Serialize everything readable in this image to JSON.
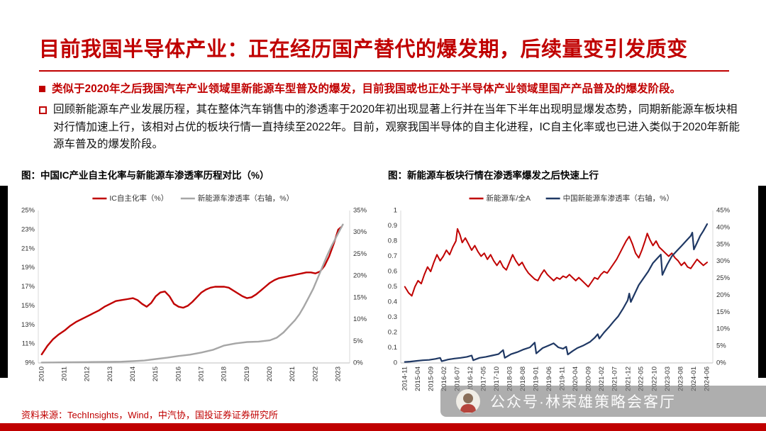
{
  "page": {
    "title": "目前我国半导体产业：正在经历国产替代的爆发期，后续量变引发质变",
    "bullets": [
      {
        "style": "filled",
        "text": "类似于2020年之后我国汽车产业领域里新能源车型普及的爆发，目前我国或也正处于半导体产业领域里国产产品普及的爆发阶段。"
      },
      {
        "style": "hollow",
        "text": "回顾新能源车产业发展历程，其在整体汽车销售中的渗透率于2020年初出现显著上行并在当年下半年出现明显爆发态势，同期新能源车板块相对行情加速上行，该相对占优的板块行情一直持续至2022年。目前，观察我国半导体的自主化进程，IC自主化率或也已进入类似于2020年新能源车普及的爆发阶段。"
      }
    ],
    "source": "资料来源：TechInsights，Wind，中汽协，国投证券证券研究所",
    "watermark": "公众号·林荣雄策略会客厅",
    "colors": {
      "accent": "#c00000",
      "bottom_bar": "#c00000",
      "side_bars": "#000000"
    }
  },
  "chart_data": [
    {
      "type": "line",
      "title": "图：中国IC产业自主化率与新能源车渗透率历程对比（%）",
      "legend_position": "top",
      "grid": false,
      "x_axis": {
        "min": 2009.85,
        "max": 2023.5,
        "tick_values": [
          2010,
          2011,
          2012,
          2013,
          2014,
          2015,
          2016,
          2017,
          2018,
          2019,
          2020,
          2021,
          2022,
          2023
        ],
        "tick_labels": [
          "2010",
          "2011",
          "2012",
          "2013",
          "2014",
          "2015",
          "2016",
          "2017",
          "2018",
          "2019",
          "2020",
          "2021",
          "2022",
          "2023"
        ]
      },
      "left_axis": {
        "min": 9,
        "max": 25,
        "tick_values": [
          9,
          11,
          13,
          15,
          17,
          19,
          21,
          23,
          25
        ],
        "tick_labels": [
          "9%",
          "11%",
          "13%",
          "15%",
          "17%",
          "19%",
          "21%",
          "23%",
          "25%"
        ]
      },
      "right_axis": {
        "min": 0,
        "max": 35,
        "tick_values": [
          0,
          5,
          10,
          15,
          20,
          25,
          30,
          35
        ],
        "tick_labels": [
          "0%",
          "5%",
          "10%",
          "15%",
          "20%",
          "25%",
          "30%",
          "35%"
        ]
      },
      "series": [
        {
          "name": "IC自主化率（%）",
          "axis": "left",
          "color": "#c00000",
          "width": 2.4,
          "x": [
            2010,
            2010.25,
            2010.5,
            2010.75,
            2011,
            2011.25,
            2011.5,
            2011.75,
            2012,
            2012.25,
            2012.5,
            2012.75,
            2013,
            2013.25,
            2013.5,
            2013.75,
            2014,
            2014.2,
            2014.4,
            2014.6,
            2014.8,
            2015,
            2015.2,
            2015.4,
            2015.6,
            2015.8,
            2016,
            2016.2,
            2016.4,
            2016.6,
            2016.8,
            2017,
            2017.2,
            2017.4,
            2017.6,
            2017.8,
            2018,
            2018.2,
            2018.4,
            2018.6,
            2018.8,
            2019,
            2019.2,
            2019.4,
            2019.6,
            2019.8,
            2020,
            2020.2,
            2020.4,
            2020.6,
            2020.8,
            2021,
            2021.2,
            2021.4,
            2021.6,
            2021.8,
            2022,
            2022.2,
            2022.4,
            2022.6,
            2022.8,
            2023,
            2023.15
          ],
          "y": [
            9.9,
            10.8,
            11.5,
            12,
            12.4,
            12.9,
            13.3,
            13.6,
            13.9,
            14.2,
            14.5,
            14.9,
            15.2,
            15.5,
            15.6,
            15.7,
            15.8,
            15.6,
            15.2,
            14.9,
            15.3,
            16,
            16.4,
            16.5,
            16,
            15.2,
            14.9,
            14.8,
            15,
            15.4,
            15.9,
            16.4,
            16.7,
            16.9,
            17,
            17,
            17,
            16.9,
            16.6,
            16.3,
            16,
            15.8,
            15.9,
            16.2,
            16.6,
            17,
            17.4,
            17.7,
            17.9,
            18,
            18.1,
            18.2,
            18.3,
            18.4,
            18.5,
            18.5,
            18.4,
            18.6,
            19.2,
            20.2,
            21.5,
            23,
            23.3
          ]
        },
        {
          "name": "新能源车渗透率（右轴，%）",
          "axis": "right",
          "color": "#a6a6a6",
          "width": 2.4,
          "x": [
            2010,
            2010.5,
            2011,
            2011.5,
            2012,
            2012.5,
            2013,
            2013.5,
            2014,
            2014.5,
            2015,
            2015.5,
            2016,
            2016.5,
            2017,
            2017.5,
            2018,
            2018.5,
            2019,
            2019.5,
            2020,
            2020.3,
            2020.6,
            2020.9,
            2021.1,
            2021.3,
            2021.5,
            2021.7,
            2021.9,
            2022.1,
            2022.3,
            2022.5,
            2022.7,
            2022.9,
            2023.1,
            2023.2
          ],
          "y": [
            0.1,
            0.12,
            0.15,
            0.18,
            0.2,
            0.22,
            0.25,
            0.3,
            0.4,
            0.55,
            0.9,
            1.2,
            1.6,
            1.9,
            2.4,
            3,
            4,
            4.5,
            4.8,
            4.9,
            5.2,
            5.8,
            7,
            8.7,
            9.8,
            11.2,
            13,
            15,
            17,
            19.5,
            22,
            24.5,
            26.8,
            28.8,
            30.8,
            31.8
          ]
        }
      ]
    },
    {
      "type": "line",
      "title": "图：新能源车板块行情在渗透率爆发之后快速上行",
      "legend_position": "top",
      "grid": false,
      "x_axis": {
        "min": 2014.7,
        "max": 2024.6,
        "tick_values": [
          2014.833,
          2015.25,
          2015.667,
          2016.083,
          2016.5,
          2016.917,
          2017.333,
          2017.75,
          2018.167,
          2018.583,
          2019.0,
          2019.417,
          2019.833,
          2020.25,
          2020.667,
          2021.083,
          2021.5,
          2021.917,
          2022.333,
          2022.75,
          2023.167,
          2023.583,
          2024.0,
          2024.417
        ],
        "tick_labels": [
          "2014-11",
          "2015-04",
          "2015-09",
          "2016-02",
          "2016-07",
          "2016-12",
          "2017-05",
          "2017-10",
          "2018-03",
          "2018-08",
          "2019-01",
          "2019-06",
          "2019-11",
          "2020-04",
          "2020-09",
          "2021-02",
          "2021-07",
          "2021-12",
          "2022-05",
          "2022-10",
          "2023-03",
          "2023-08",
          "2024-01",
          "2024-06"
        ]
      },
      "left_axis": {
        "min": 0,
        "max": 1,
        "tick_values": [
          0,
          0.1,
          0.2,
          0.3,
          0.4,
          0.5,
          0.6,
          0.7,
          0.8,
          0.9,
          1
        ],
        "tick_labels": [
          "0",
          "0.1",
          "0.2",
          "0.3",
          "0.4",
          "0.5",
          "0.6",
          "0.7",
          "0.8",
          "0.9",
          "1"
        ]
      },
      "right_axis": {
        "min": 0,
        "max": 45,
        "tick_values": [
          0,
          5,
          10,
          15,
          20,
          25,
          30,
          35,
          40,
          45
        ],
        "tick_labels": [
          "0%",
          "5%",
          "10%",
          "15%",
          "20%",
          "25%",
          "30%",
          "35%",
          "40%",
          "45%"
        ]
      },
      "series": [
        {
          "name": "新能源车/全A",
          "axis": "left",
          "color": "#c00000",
          "width": 2,
          "x": [
            2014.83,
            2014.95,
            2015.05,
            2015.15,
            2015.25,
            2015.35,
            2015.45,
            2015.55,
            2015.65,
            2015.75,
            2015.85,
            2015.95,
            2016.05,
            2016.15,
            2016.25,
            2016.35,
            2016.45,
            2016.5,
            2016.58,
            2016.65,
            2016.75,
            2016.85,
            2016.95,
            2017.05,
            2017.15,
            2017.25,
            2017.35,
            2017.45,
            2017.55,
            2017.65,
            2017.75,
            2017.85,
            2017.95,
            2018.05,
            2018.15,
            2018.25,
            2018.35,
            2018.45,
            2018.55,
            2018.65,
            2018.75,
            2018.85,
            2018.95,
            2019.05,
            2019.15,
            2019.25,
            2019.35,
            2019.45,
            2019.55,
            2019.65,
            2019.75,
            2019.85,
            2019.95,
            2020.05,
            2020.15,
            2020.25,
            2020.35,
            2020.45,
            2020.55,
            2020.65,
            2020.75,
            2020.85,
            2020.95,
            2021.05,
            2021.15,
            2021.25,
            2021.35,
            2021.45,
            2021.55,
            2021.65,
            2021.75,
            2021.85,
            2021.95,
            2022.05,
            2022.15,
            2022.25,
            2022.35,
            2022.45,
            2022.52,
            2022.6,
            2022.7,
            2022.8,
            2022.9,
            2023,
            2023.1,
            2023.2,
            2023.3,
            2023.4,
            2023.5,
            2023.6,
            2023.7,
            2023.8,
            2023.9,
            2024,
            2024.1,
            2024.2,
            2024.3,
            2024.42
          ],
          "y": [
            0.5,
            0.46,
            0.44,
            0.5,
            0.54,
            0.52,
            0.58,
            0.63,
            0.6,
            0.66,
            0.71,
            0.67,
            0.7,
            0.74,
            0.71,
            0.76,
            0.8,
            0.88,
            0.84,
            0.79,
            0.82,
            0.78,
            0.74,
            0.77,
            0.73,
            0.7,
            0.72,
            0.68,
            0.71,
            0.67,
            0.64,
            0.67,
            0.63,
            0.61,
            0.66,
            0.71,
            0.67,
            0.64,
            0.66,
            0.62,
            0.59,
            0.57,
            0.55,
            0.54,
            0.58,
            0.61,
            0.58,
            0.56,
            0.54,
            0.56,
            0.55,
            0.57,
            0.56,
            0.58,
            0.56,
            0.54,
            0.56,
            0.54,
            0.52,
            0.5,
            0.53,
            0.56,
            0.55,
            0.58,
            0.6,
            0.59,
            0.62,
            0.65,
            0.68,
            0.72,
            0.76,
            0.8,
            0.83,
            0.78,
            0.72,
            0.69,
            0.74,
            0.8,
            0.85,
            0.81,
            0.77,
            0.8,
            0.76,
            0.74,
            0.72,
            0.7,
            0.72,
            0.69,
            0.67,
            0.64,
            0.66,
            0.63,
            0.62,
            0.65,
            0.68,
            0.66,
            0.64,
            0.66
          ]
        },
        {
          "name": "中国新能源车渗透率（右轴，%）",
          "axis": "right",
          "color": "#1f3864",
          "width": 2.2,
          "x": [
            2014.83,
            2015,
            2015.2,
            2015.4,
            2015.6,
            2015.8,
            2015.95,
            2016,
            2016.2,
            2016.4,
            2016.6,
            2016.8,
            2016.95,
            2017,
            2017.2,
            2017.4,
            2017.6,
            2017.8,
            2017.95,
            2018,
            2018.2,
            2018.4,
            2018.6,
            2018.8,
            2018.95,
            2019,
            2019.2,
            2019.4,
            2019.55,
            2019.7,
            2019.85,
            2019.95,
            2020,
            2020.15,
            2020.3,
            2020.5,
            2020.7,
            2020.85,
            2020.95,
            2021,
            2021.15,
            2021.3,
            2021.45,
            2021.6,
            2021.75,
            2021.9,
            2021.95,
            2022,
            2022.1,
            2022.25,
            2022.4,
            2022.55,
            2022.7,
            2022.85,
            2022.95,
            2023,
            2023.15,
            2023.3,
            2023.45,
            2023.6,
            2023.75,
            2023.9,
            2023.95,
            2024,
            2024.1,
            2024.2,
            2024.3,
            2024.42
          ],
          "y": [
            0.3,
            0.4,
            0.6,
            0.8,
            0.9,
            1.2,
            1.5,
            0.5,
            1.0,
            1.3,
            1.5,
            1.8,
            2.2,
            0.8,
            1.5,
            1.8,
            2.2,
            2.6,
            3.8,
            1.5,
            2.6,
            3.2,
            4.0,
            4.6,
            6.0,
            2.8,
            4.4,
            5.2,
            5.8,
            4.6,
            4.2,
            4.8,
            2.5,
            3.5,
            4.4,
            5.2,
            6.2,
            7.4,
            8.5,
            7.2,
            9.0,
            10.5,
            12.2,
            13.8,
            16.0,
            18.5,
            20.5,
            18.0,
            20.0,
            23.0,
            25.0,
            27.0,
            29.5,
            31.0,
            32.0,
            26.0,
            29.0,
            31.5,
            33.0,
            34.5,
            36.0,
            37.5,
            38.5,
            33.5,
            35.5,
            37.5,
            39.0,
            41.0
          ]
        }
      ]
    }
  ]
}
